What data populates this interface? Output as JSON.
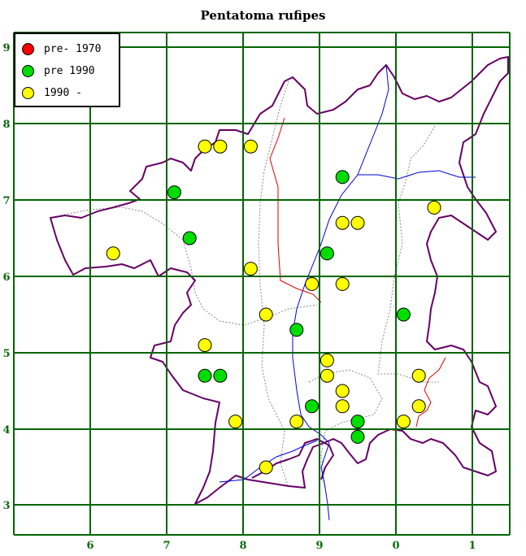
{
  "title": "Pentatoma rufipes",
  "x_axis_labels": [
    "6",
    "7",
    "8",
    "9",
    "0",
    "1"
  ],
  "y_axis_labels": [
    "9",
    "8",
    "7",
    "6",
    "5",
    "4",
    "3"
  ],
  "legend": [
    {
      "label": "pre- 1970",
      "color": "#ff0000"
    },
    {
      "label": "pre 1990",
      "color": "#00dd00"
    },
    {
      "label": "1990 -",
      "color": "#ffff00"
    }
  ],
  "colors": {
    "grid": "#006600",
    "boundary": "#660066",
    "river": "#0000dd",
    "road": "#dd0000",
    "dashed": "#888888"
  },
  "chart_data": {
    "type": "scatter",
    "title": "Pentatoma rufipes",
    "xlabel": "",
    "ylabel": "",
    "series": [
      {
        "name": "pre- 1970",
        "color": "#ff0000",
        "points": []
      },
      {
        "name": "pre 1990",
        "color": "#00dd00",
        "points": [
          [
            7.1,
            7.1
          ],
          [
            9.3,
            7.3
          ],
          [
            7.3,
            6.5
          ],
          [
            9.1,
            6.3
          ],
          [
            0.1,
            5.5
          ],
          [
            8.7,
            5.3
          ],
          [
            7.5,
            4.7
          ],
          [
            7.7,
            4.7
          ],
          [
            8.9,
            4.3
          ],
          [
            9.5,
            4.1
          ],
          [
            9.5,
            3.9
          ]
        ]
      },
      {
        "name": "1990 -",
        "color": "#ffff00",
        "points": [
          [
            7.5,
            7.7
          ],
          [
            7.7,
            7.7
          ],
          [
            8.1,
            7.7
          ],
          [
            0.5,
            6.9
          ],
          [
            9.3,
            6.7
          ],
          [
            9.5,
            6.7
          ],
          [
            6.3,
            6.3
          ],
          [
            8.1,
            6.1
          ],
          [
            8.9,
            5.9
          ],
          [
            9.3,
            5.9
          ],
          [
            8.3,
            5.5
          ],
          [
            7.5,
            5.1
          ],
          [
            9.1,
            4.9
          ],
          [
            9.1,
            4.7
          ],
          [
            0.3,
            4.7
          ],
          [
            9.3,
            4.5
          ],
          [
            9.3,
            4.3
          ],
          [
            0.3,
            4.3
          ],
          [
            7.9,
            4.1
          ],
          [
            8.7,
            4.1
          ],
          [
            0.1,
            4.1
          ],
          [
            8.3,
            3.5
          ]
        ]
      }
    ]
  }
}
